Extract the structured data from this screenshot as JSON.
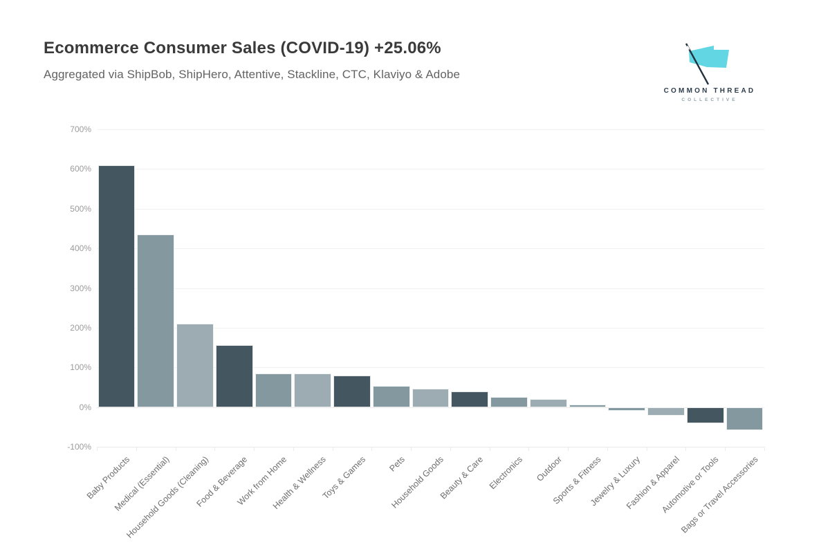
{
  "header": {
    "title": "Ecommerce Consumer Sales (COVID-19) +25.06%",
    "subtitle": "Aggregated via ShipBob, ShipHero, Attentive, Stackline, CTC, Klaviyo & Adobe"
  },
  "logo": {
    "line1": "COMMON THREAD",
    "line2": "COLLECTIVE",
    "flag_color": "#63d6e3",
    "needle_color": "#22323e",
    "wordmark_color": "#2e3d4c",
    "subwordmark_color": "#8fa3ad"
  },
  "chart_data": {
    "type": "bar",
    "title": "Ecommerce Consumer Sales (COVID-19) +25.06%",
    "xlabel": "",
    "ylabel": "",
    "ylim": [
      -100,
      700
    ],
    "ytick_step": 100,
    "yticks": [
      "700%",
      "600%",
      "500%",
      "400%",
      "300%",
      "200%",
      "100%",
      "0%",
      "-100%"
    ],
    "grid": true,
    "legend": "none",
    "categories": [
      "Baby Products",
      "Medical (Essential)",
      "Household Goods (Cleaning)",
      "Food & Beverage",
      "Work from Home",
      "Health & Wellness",
      "Toys & Games",
      "Pets",
      "Household Goods",
      "Beauty & Care",
      "Electronics",
      "Outdoor",
      "Sports & Fitness",
      "Jewelry & Luxury",
      "Fashion & Apparel",
      "Automotive or Tools",
      "Bags or Travel Accessories"
    ],
    "values": [
      610,
      435,
      211,
      156,
      85,
      84,
      79,
      54,
      47,
      40,
      26,
      20,
      6,
      -9,
      -21,
      -40,
      -59
    ],
    "bar_color_names": [
      "dark",
      "medium",
      "light",
      "dark",
      "medium",
      "light",
      "dark",
      "medium",
      "light",
      "dark",
      "medium",
      "light",
      "medium",
      "medium",
      "light",
      "dark",
      "medium"
    ],
    "palette": {
      "dark": "#44565f",
      "medium": "#84999f",
      "light": "#9cacb2"
    },
    "gridline_color": "#f1f1f1",
    "axis_line_color": "#e9e9e9",
    "ytick_label_color": "#9b9b9b",
    "xtick_label_color": "#6e6e6e"
  }
}
